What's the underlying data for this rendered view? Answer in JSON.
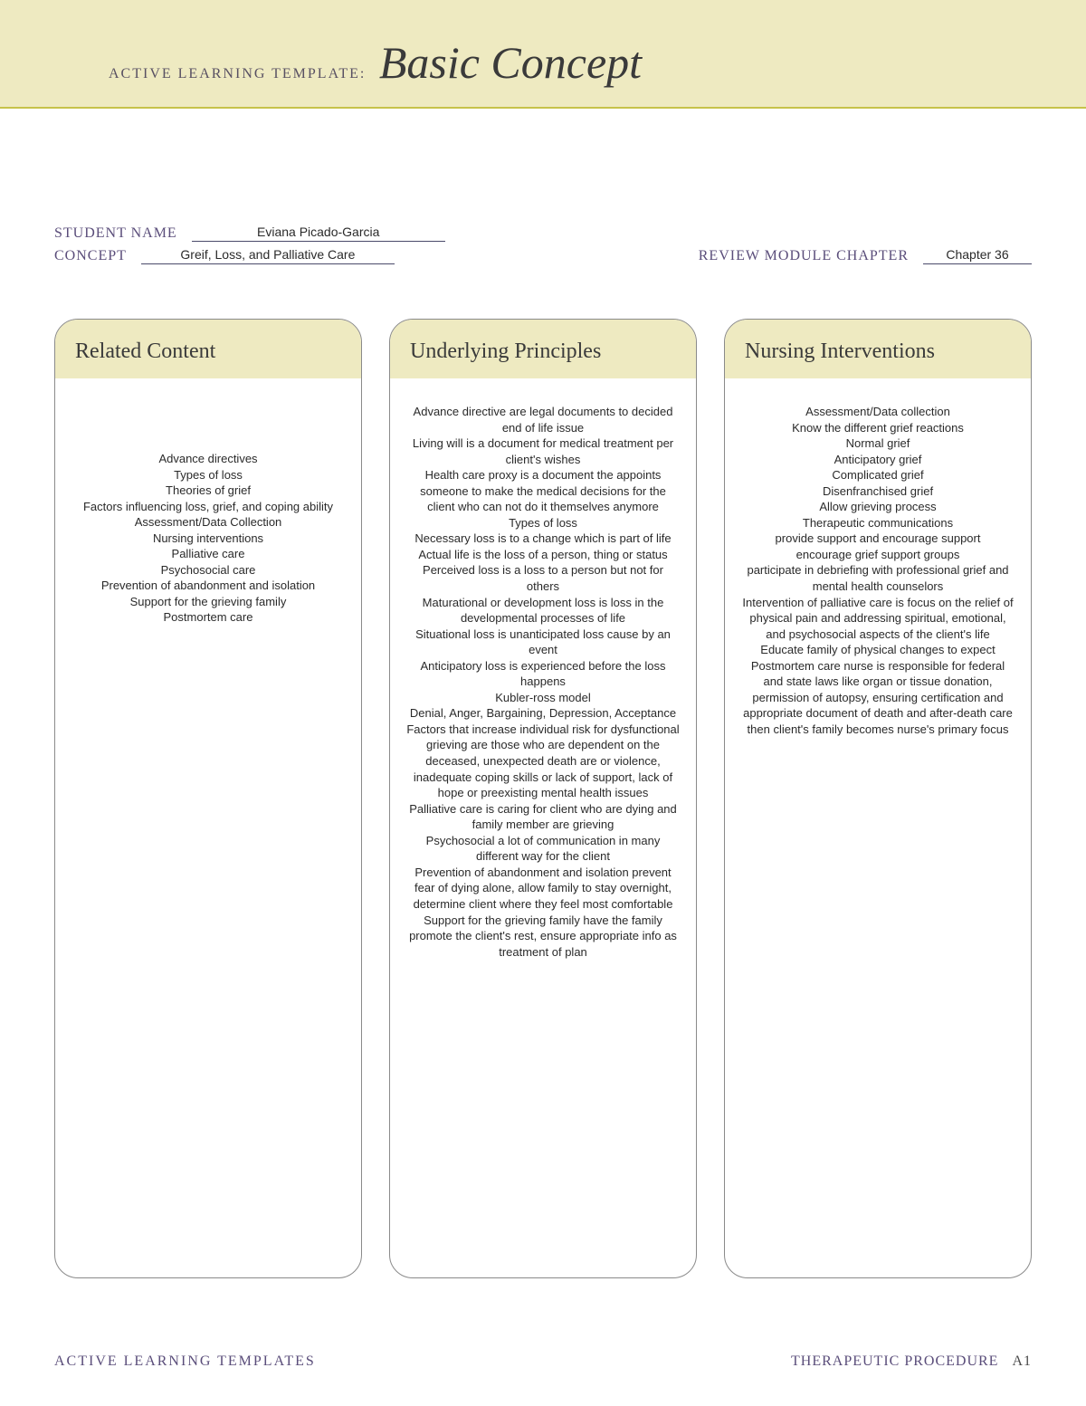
{
  "header": {
    "template_label": "ACTIVE LEARNING TEMPLATE:",
    "template_title": "Basic Concept"
  },
  "info": {
    "student_name_label": "STUDENT NAME",
    "student_name_value": "Eviana Picado-Garcia",
    "concept_label": "CONCEPT",
    "concept_value": "Greif, Loss, and Palliative Care",
    "review_label": "REVIEW MODULE CHAPTER",
    "chapter_value": "Chapter 36"
  },
  "columns": {
    "related": {
      "title": "Related Content",
      "body": "Advance directives\nTypes of loss\nTheories of grief\nFactors influencing loss, grief, and coping ability\nAssessment/Data Collection\nNursing interventions\nPalliative care\nPsychosocial care\nPrevention of abandonment and isolation\nSupport for the grieving family\nPostmortem care"
    },
    "principles": {
      "title": "Underlying Principles",
      "body": "Advance directive are legal documents to decided end of life issue\nLiving will is a document for medical treatment per client's wishes\nHealth care proxy is a document the appoints someone to make the medical decisions for the client who can not do it themselves anymore\nTypes of loss\nNecessary loss is to a change which is part of life\nActual life is the loss of a person, thing or status\nPerceived loss is a loss to a person but not for others\nMaturational or development loss is loss in the developmental processes of life\nSituational loss is unanticipated loss cause by an event\nAnticipatory loss is experienced before the loss happens\nKubler-ross model\nDenial, Anger, Bargaining, Depression, Acceptance\nFactors that increase individual risk for dysfunctional grieving are those who are dependent on the deceased, unexpected death are or violence, inadequate coping skills or lack of support, lack of hope or preexisting mental health issues\nPalliative care is caring for client who are dying and family member are grieving\nPsychosocial a lot of communication in many different way for the client\nPrevention of abandonment and isolation prevent fear of dying alone, allow family to stay overnight, determine client where they feel most comfortable\nSupport for the grieving family have the family promote the client's rest, ensure appropriate info as treatment of plan"
    },
    "interventions": {
      "title": "Nursing Interventions",
      "body": "Assessment/Data collection\nKnow the different grief reactions\nNormal grief\nAnticipatory grief\nComplicated grief\nDisenfranchised grief\nAllow grieving process\nTherapeutic communications\nprovide support and encourage support\nencourage grief support groups\nparticipate in debriefing with professional grief and mental health counselors\nIntervention of palliative care is focus on the relief of physical pain and addressing spiritual, emotional, and psychosocial aspects of the client's life\nEducate family of physical changes to expect\nPostmortem care nurse is responsible for federal and state laws like organ or tissue donation, permission of autopsy, ensuring certification and appropriate document of death and after-death care then client's family becomes nurse's primary focus"
    }
  },
  "footer": {
    "left": "ACTIVE LEARNING TEMPLATES",
    "right": "THERAPEUTIC PROCEDURE",
    "page": "A1"
  },
  "colors": {
    "band_bg": "#eeeac1",
    "band_border": "#c6c24a",
    "card_border": "#8a8a8a",
    "label_color": "#5a4d7a",
    "title_color": "#3a3a3a",
    "underline_color": "#4a4a6a"
  }
}
